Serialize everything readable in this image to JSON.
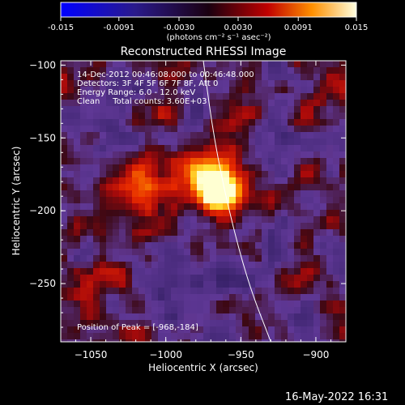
{
  "colorbar": {
    "ticks": [
      "-0.015",
      "-0.0091",
      "-0.0030",
      "0.0030",
      "0.0091",
      "0.015"
    ],
    "unit_label": "(photons cm⁻² s⁻¹ asec⁻²)"
  },
  "chart_data": {
    "type": "heatmap",
    "title": "Reconstructed RHESSI Image",
    "xlabel": "Heliocentric X (arcsec)",
    "ylabel": "Heliocentric Y (arcsec)",
    "xlim": [
      -1070,
      -880
    ],
    "ylim": [
      -290,
      -97
    ],
    "xticks": [
      -1050,
      -1000,
      -950,
      -900
    ],
    "yticks": [
      -100,
      -150,
      -200,
      -250
    ],
    "colorbar_range": [
      -0.015,
      0.015
    ],
    "peak": {
      "x": -968,
      "y": -184
    },
    "limb_curve": [
      [
        -975,
        -97
      ],
      [
        -968,
        -150
      ],
      [
        -958,
        -200
      ],
      [
        -945,
        -250
      ],
      [
        -930,
        -290
      ]
    ],
    "annotations": [
      "14-Dec-2012 00:46:08.000 to 00:46:48.000",
      "Detectors: 3F 4F 5F 6F 7F 8F, Att 0",
      "Energy Range: 6.0 - 12.0 keV",
      "Clean     Total counts: 3.60E+03",
      "Position of Peak = [-968,-184]"
    ]
  },
  "footer": {
    "timestamp": "16-May-2022 16:31"
  }
}
